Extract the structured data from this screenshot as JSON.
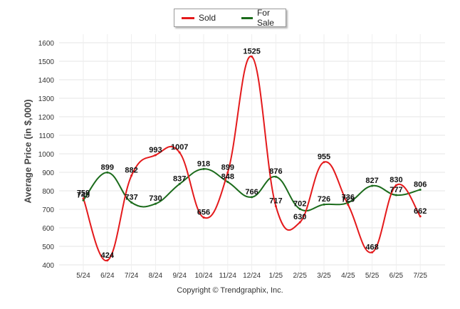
{
  "chart_data": {
    "type": "line",
    "categories": [
      "5/24",
      "6/24",
      "7/24",
      "8/24",
      "9/24",
      "10/24",
      "11/24",
      "12/24",
      "1/25",
      "2/25",
      "3/25",
      "4/25",
      "5/25",
      "6/25",
      "7/25"
    ],
    "series": [
      {
        "name": "Sold",
        "color": "#e41a1c",
        "values": [
          759,
          424,
          882,
          993,
          1007,
          656,
          899,
          1525,
          717,
          630,
          955,
          725,
          468,
          830,
          662
        ]
      },
      {
        "name": "For Sale",
        "color": "#1b6b1b",
        "values": [
          749,
          899,
          737,
          730,
          837,
          918,
          848,
          766,
          876,
          702,
          726,
          736,
          827,
          777,
          806
        ]
      }
    ],
    "ylabel": "Average Price (in $,000)",
    "yticks": [
      400,
      500,
      600,
      700,
      800,
      900,
      1000,
      1100,
      1200,
      1300,
      1400,
      1500,
      1600
    ],
    "ylim": [
      400,
      1600
    ],
    "grid": true,
    "legend_position": "top-center"
  },
  "legend": {
    "sold": "Sold",
    "for_sale": "For Sale"
  },
  "copyright": "Copyright © Trendgraphix, Inc."
}
